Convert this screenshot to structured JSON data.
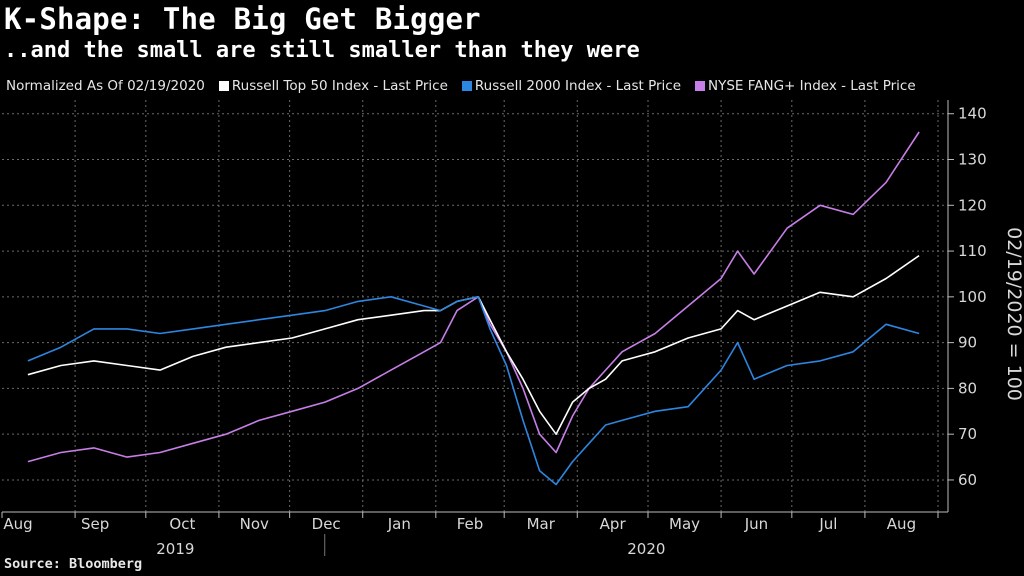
{
  "title": "K-Shape: The Big Get Bigger",
  "subtitle": "..and the small are still smaller than they were",
  "legend_note": "Normalized As Of 02/19/2020",
  "source": "Source: Bloomberg",
  "colors": {
    "background": "#000000",
    "russell_top50": "#ffffff",
    "russell_2000": "#2d86e0",
    "fang": "#c77ee8",
    "grid": "#6a6a6a"
  },
  "chart_data": {
    "type": "line",
    "ylabel": "02/19/2020 = 100",
    "ylim": [
      53,
      143
    ],
    "y_ticks": [
      60,
      70,
      80,
      90,
      100,
      110,
      120,
      130,
      140
    ],
    "x_month_labels": [
      "Aug",
      "Sep",
      "Oct",
      "Nov",
      "Dec",
      "Jan",
      "Feb",
      "Mar",
      "Apr",
      "May",
      "Jun",
      "Jul",
      "Aug"
    ],
    "year_labels": [
      "2019",
      "2020"
    ],
    "grid": true,
    "legend_position": "top",
    "x": [
      "2019-08-12",
      "2019-08-26",
      "2019-09-09",
      "2019-09-23",
      "2019-10-07",
      "2019-10-21",
      "2019-11-04",
      "2019-11-18",
      "2019-12-02",
      "2019-12-16",
      "2019-12-30",
      "2020-01-13",
      "2020-01-27",
      "2020-02-03",
      "2020-02-10",
      "2020-02-19",
      "2020-02-24",
      "2020-03-02",
      "2020-03-09",
      "2020-03-16",
      "2020-03-23",
      "2020-03-30",
      "2020-04-06",
      "2020-04-13",
      "2020-04-20",
      "2020-05-04",
      "2020-05-18",
      "2020-06-01",
      "2020-06-08",
      "2020-06-15",
      "2020-06-29",
      "2020-07-13",
      "2020-07-27",
      "2020-08-10",
      "2020-08-24"
    ],
    "series": [
      {
        "name": "Russell Top 50 Index - Last Price",
        "color": "#ffffff",
        "values": [
          83,
          85,
          86,
          85,
          84,
          87,
          89,
          90,
          91,
          93,
          95,
          96,
          97,
          97,
          99,
          100,
          95,
          88,
          82,
          75,
          70,
          77,
          80,
          82,
          86,
          88,
          91,
          93,
          97,
          95,
          98,
          101,
          100,
          104,
          109
        ]
      },
      {
        "name": "Russell 2000 Index - Last Price",
        "color": "#2d86e0",
        "values": [
          86,
          89,
          93,
          93,
          92,
          93,
          94,
          95,
          96,
          97,
          99,
          100,
          98,
          97,
          99,
          100,
          93,
          85,
          73,
          62,
          59,
          64,
          68,
          72,
          73,
          75,
          76,
          84,
          90,
          82,
          85,
          86,
          88,
          94,
          92
        ]
      },
      {
        "name": "NYSE FANG+ Index - Last Price",
        "color": "#c77ee8",
        "values": [
          64,
          66,
          67,
          65,
          66,
          68,
          70,
          73,
          75,
          77,
          80,
          84,
          88,
          90,
          97,
          100,
          94,
          88,
          80,
          70,
          66,
          74,
          80,
          84,
          88,
          92,
          98,
          104,
          110,
          105,
          115,
          120,
          118,
          125,
          136
        ]
      }
    ]
  }
}
